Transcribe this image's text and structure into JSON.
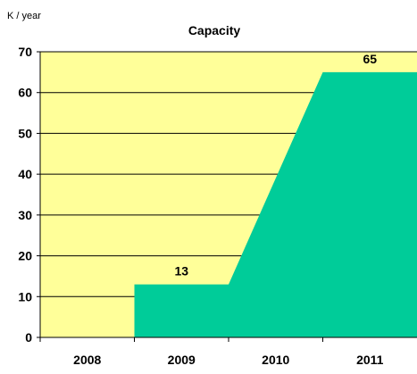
{
  "colors": {
    "plot_background": "#FFFF99",
    "area_fill": "#00CC99",
    "gridline": "#000000",
    "axis": "#000000"
  },
  "chart_data": {
    "type": "area",
    "title": "Capacity",
    "unit_label": "K / year",
    "categories": [
      "2008",
      "2009",
      "2010",
      "2011"
    ],
    "series": [
      {
        "values": [
          0,
          13,
          13,
          65
        ]
      }
    ],
    "data_labels": [
      {
        "category": "2009",
        "value": "13"
      },
      {
        "category": "2011",
        "value": "65"
      }
    ],
    "yticks": [
      0,
      10,
      20,
      30,
      40,
      50,
      60,
      70
    ],
    "ylim": [
      0,
      70
    ],
    "grid": true,
    "legend": "none"
  }
}
